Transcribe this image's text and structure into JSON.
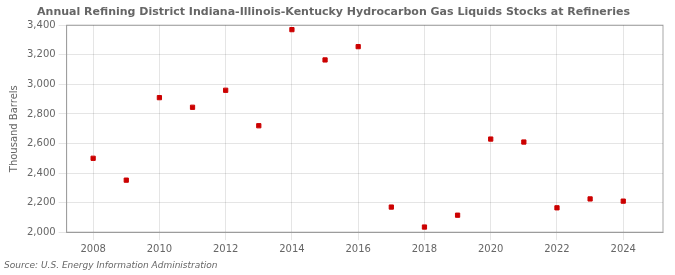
{
  "chart_data": {
    "type": "scatter",
    "title": "Annual Refining District Indiana-Illinois-Kentucky Hydrocarbon Gas Liquids Stocks at Refineries",
    "ylabel": "Thousand Barrels",
    "source": "Source: U.S. Energy Information Administration",
    "x": [
      2008,
      2009,
      2010,
      2011,
      2012,
      2013,
      2014,
      2015,
      2016,
      2017,
      2018,
      2019,
      2020,
      2021,
      2022,
      2023,
      2024
    ],
    "values": [
      2500,
      2352,
      2910,
      2845,
      2960,
      2720,
      3370,
      3165,
      3255,
      2170,
      2035,
      2115,
      2630,
      2610,
      2165,
      2225,
      2210
    ],
    "color": "#cc0000",
    "marker": "square",
    "xlim": [
      2007.2,
      2025.2
    ],
    "xticks": [
      2008,
      2010,
      2012,
      2014,
      2016,
      2018,
      2020,
      2022,
      2024
    ],
    "ylim": [
      2000,
      3400
    ],
    "yticks": [
      {
        "value": 2000,
        "label": "2,000"
      },
      {
        "value": 2200,
        "label": "2,200"
      },
      {
        "value": 2400,
        "label": "2,400"
      },
      {
        "value": 2600,
        "label": "2,600"
      },
      {
        "value": 2800,
        "label": "2,800"
      },
      {
        "value": 3000,
        "label": "3,000"
      },
      {
        "value": 3200,
        "label": "3,200"
      },
      {
        "value": 3400,
        "label": "3,400"
      }
    ],
    "grid": true
  }
}
